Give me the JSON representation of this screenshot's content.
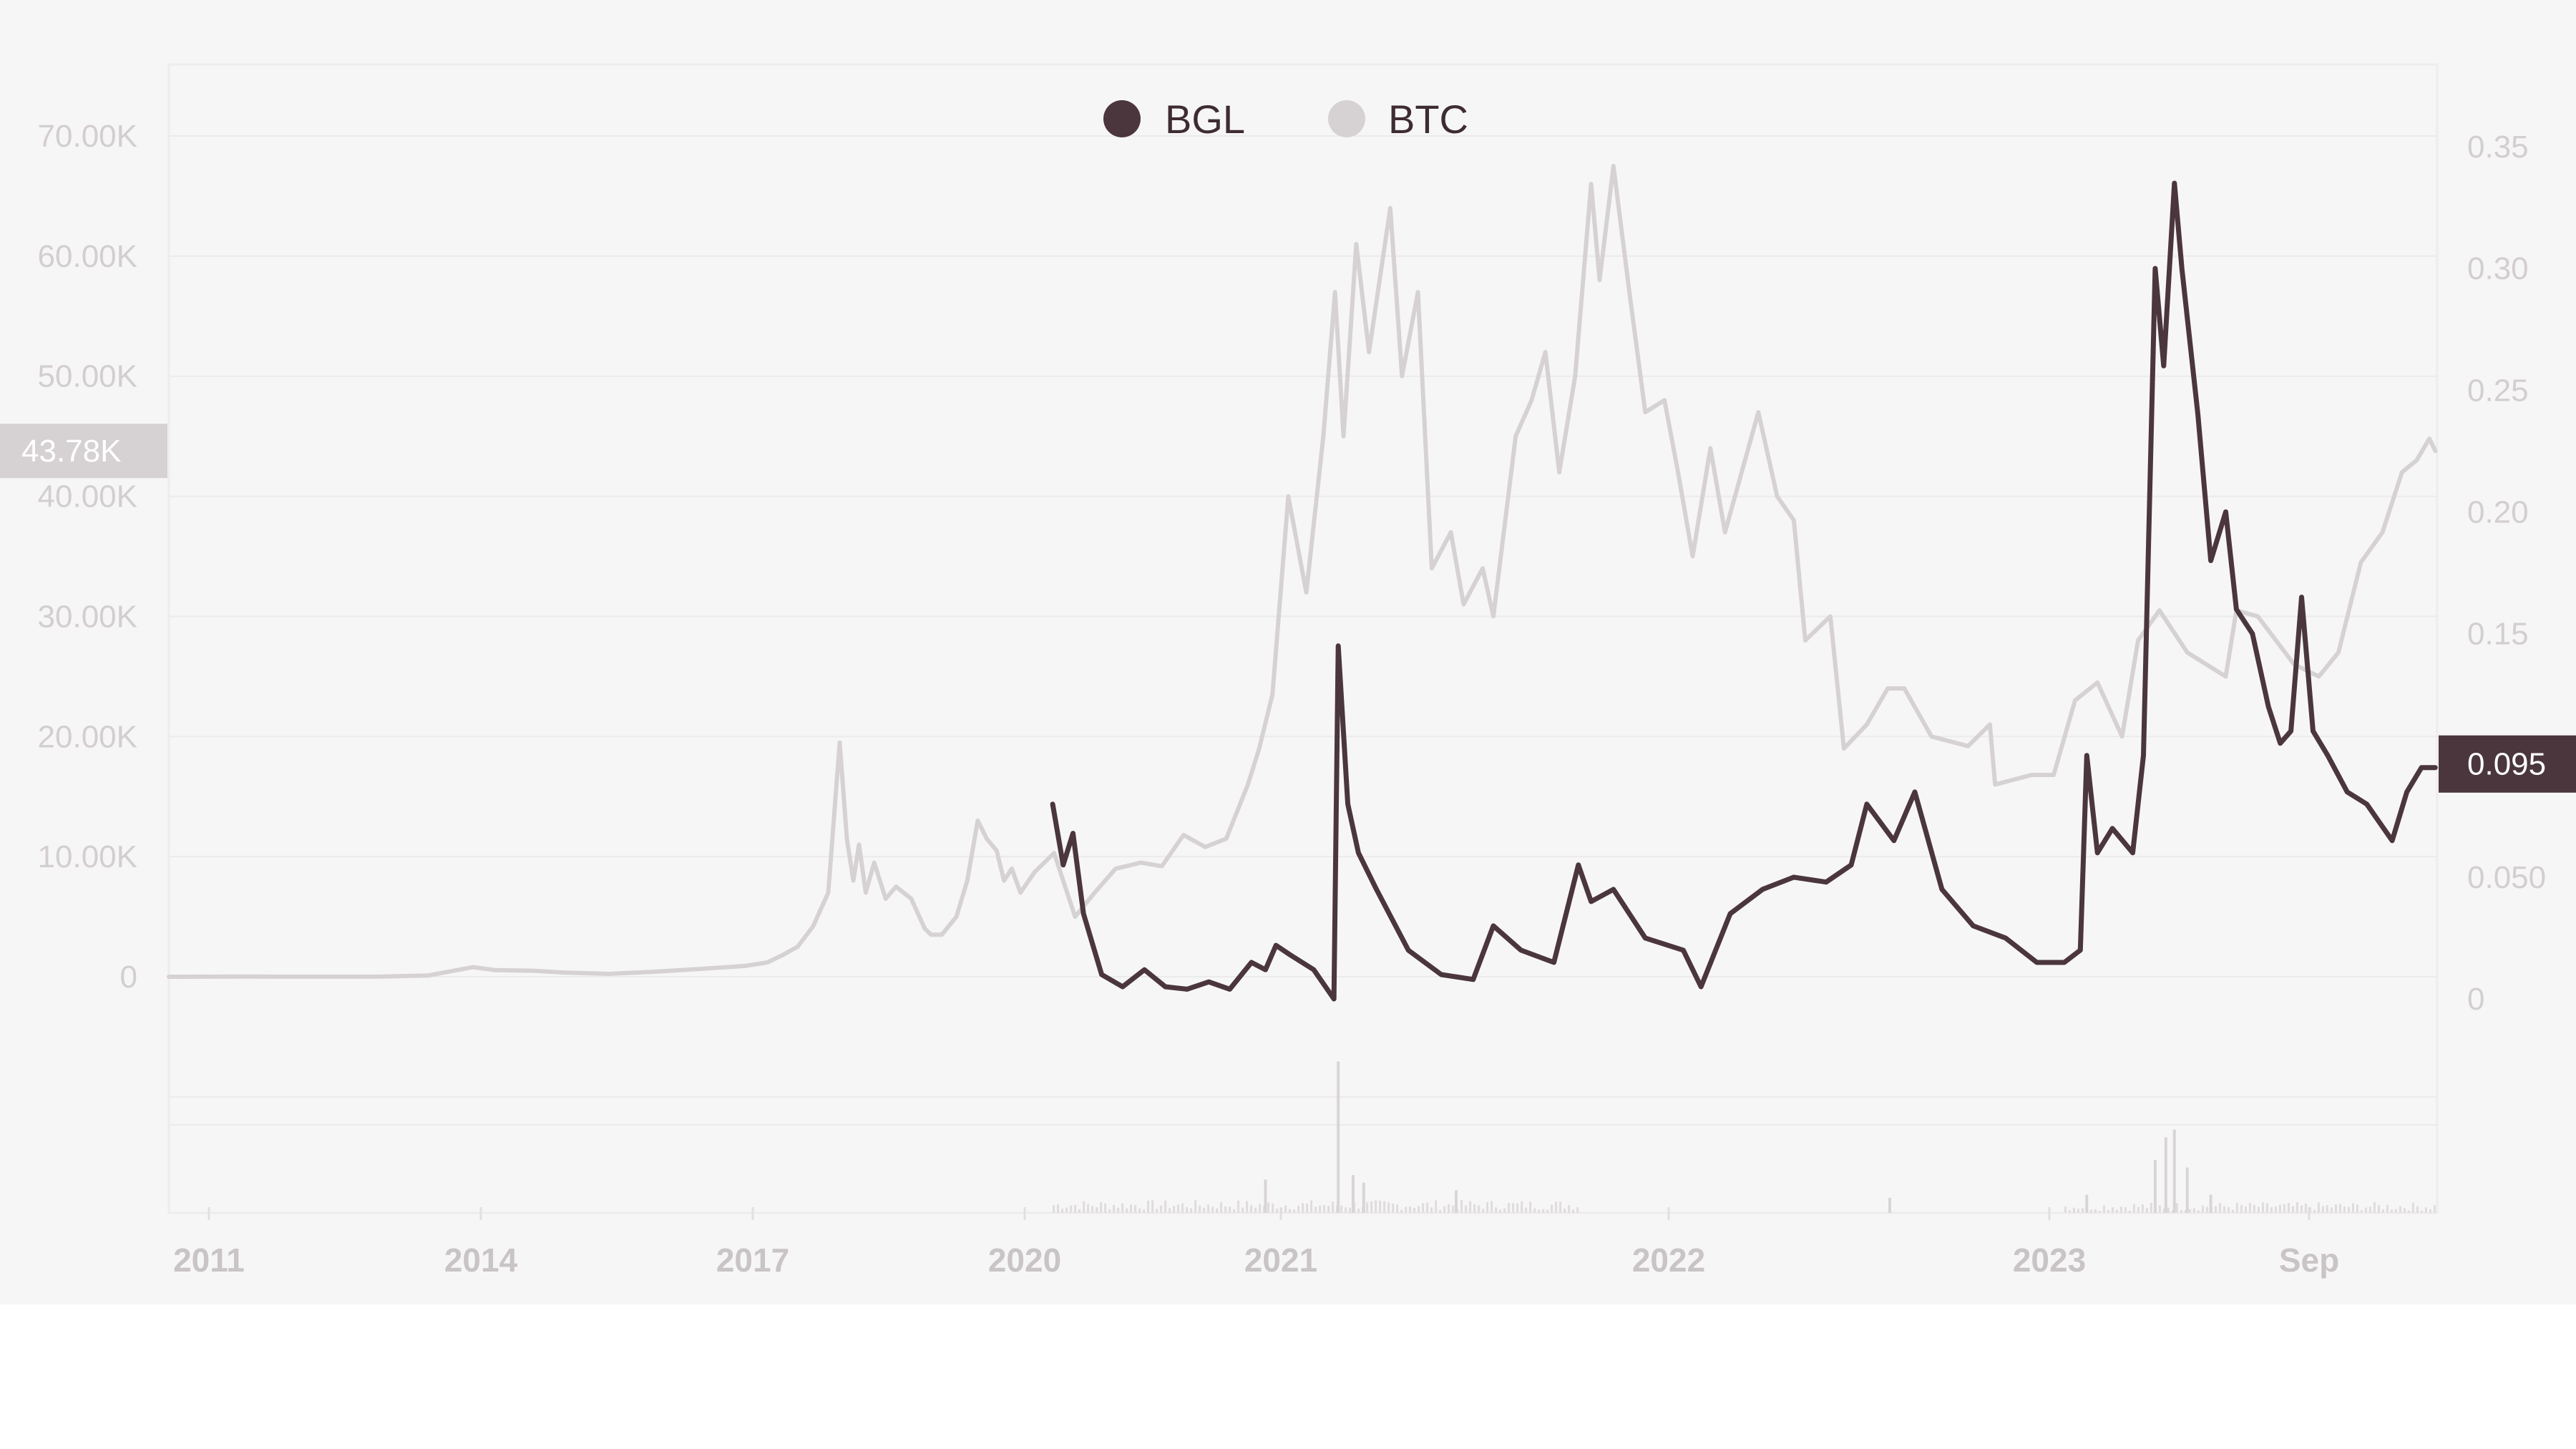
{
  "chart_data": {
    "type": "line",
    "legend": {
      "placement": "top-center",
      "items": [
        {
          "label": "BGL",
          "color": "#4a363c"
        },
        {
          "label": "BTC",
          "color": "#d6d2d3"
        }
      ]
    },
    "x_axis": {
      "ticks": [
        {
          "label": "2011",
          "date": "2011-01-01"
        },
        {
          "label": "2014",
          "date": "2014-01-01"
        },
        {
          "label": "2017",
          "date": "2017-01-01"
        },
        {
          "label": "2020",
          "date": "2020-01-01"
        },
        {
          "label": "2021",
          "date": "2021-01-01"
        },
        {
          "label": "2022",
          "date": "2022-01-01"
        },
        {
          "label": "2023",
          "date": "2023-01-01"
        },
        {
          "label": "Sep",
          "date": "2023-09-01"
        }
      ]
    },
    "y_left": {
      "series": "BTC",
      "range": [
        -10000,
        77000
      ],
      "ticks": [
        {
          "label": "0",
          "value": 0
        },
        {
          "label": "10.00K",
          "value": 10000
        },
        {
          "label": "20.00K",
          "value": 20000
        },
        {
          "label": "30.00K",
          "value": 30000
        },
        {
          "label": "40.00K",
          "value": 40000
        },
        {
          "label": "50.00K",
          "value": 50000
        },
        {
          "label": "60.00K",
          "value": 60000
        },
        {
          "label": "70.00K",
          "value": 70000
        }
      ],
      "current_badge": {
        "label": "43.78K",
        "value": 43780,
        "color": "#d6d2d3"
      }
    },
    "y_right": {
      "series": "BGL",
      "range": [
        -0.05,
        0.37
      ],
      "ticks": [
        {
          "label": "0",
          "value": 0
        },
        {
          "label": "0.050",
          "value": 0.05
        },
        {
          "label": "0.15",
          "value": 0.15
        },
        {
          "label": "0.20",
          "value": 0.2
        },
        {
          "label": "0.25",
          "value": 0.25
        },
        {
          "label": "0.30",
          "value": 0.3
        },
        {
          "label": "0.35",
          "value": 0.35
        }
      ],
      "current_badge": {
        "label": "0.095",
        "value": 0.095,
        "color": "#4a363c"
      }
    },
    "grid": true,
    "series": [
      {
        "name": "BTC",
        "axis": "left",
        "color": "#d6d2d3",
        "points": [
          [
            "2010-07-01",
            0
          ],
          [
            "2011-06-01",
            20
          ],
          [
            "2011-12-01",
            4
          ],
          [
            "2012-06-01",
            6
          ],
          [
            "2012-12-01",
            13
          ],
          [
            "2013-06-01",
            100
          ],
          [
            "2013-12-01",
            800
          ],
          [
            "2014-03-01",
            550
          ],
          [
            "2014-08-01",
            500
          ],
          [
            "2014-12-01",
            350
          ],
          [
            "2015-06-01",
            240
          ],
          [
            "2015-12-01",
            420
          ],
          [
            "2016-06-01",
            650
          ],
          [
            "2016-12-01",
            900
          ],
          [
            "2017-03-01",
            1200
          ],
          [
            "2017-05-01",
            1800
          ],
          [
            "2017-07-01",
            2500
          ],
          [
            "2017-09-01",
            4200
          ],
          [
            "2017-11-01",
            7000
          ],
          [
            "2017-12-17",
            19500
          ],
          [
            "2018-01-15",
            11500
          ],
          [
            "2018-02-10",
            8000
          ],
          [
            "2018-03-05",
            11000
          ],
          [
            "2018-04-01",
            7000
          ],
          [
            "2018-05-05",
            9500
          ],
          [
            "2018-06-20",
            6500
          ],
          [
            "2018-08-01",
            7500
          ],
          [
            "2018-10-01",
            6500
          ],
          [
            "2018-11-25",
            4000
          ],
          [
            "2018-12-20",
            3500
          ],
          [
            "2019-02-01",
            3500
          ],
          [
            "2019-04-01",
            5000
          ],
          [
            "2019-05-15",
            8000
          ],
          [
            "2019-06-26",
            13000
          ],
          [
            "2019-08-01",
            11500
          ],
          [
            "2019-09-10",
            10500
          ],
          [
            "2019-10-10",
            8000
          ],
          [
            "2019-11-10",
            9000
          ],
          [
            "2019-12-15",
            7000
          ],
          [
            "2020-01-15",
            8700
          ],
          [
            "2020-02-12",
            10300
          ],
          [
            "2020-03-13",
            5000
          ],
          [
            "2020-04-10",
            7000
          ],
          [
            "2020-05-10",
            9000
          ],
          [
            "2020-06-15",
            9500
          ],
          [
            "2020-07-15",
            9200
          ],
          [
            "2020-08-15",
            11800
          ],
          [
            "2020-09-15",
            10800
          ],
          [
            "2020-10-15",
            11500
          ],
          [
            "2020-11-15",
            16000
          ],
          [
            "2020-12-01",
            19000
          ],
          [
            "2020-12-20",
            23500
          ],
          [
            "2021-01-08",
            40000
          ],
          [
            "2021-01-25",
            32000
          ],
          [
            "2021-02-10",
            45000
          ],
          [
            "2021-02-21",
            57000
          ],
          [
            "2021-03-01",
            45000
          ],
          [
            "2021-03-13",
            61000
          ],
          [
            "2021-03-25",
            52000
          ],
          [
            "2021-04-14",
            64000
          ],
          [
            "2021-04-25",
            50000
          ],
          [
            "2021-05-10",
            57000
          ],
          [
            "2021-05-23",
            34000
          ],
          [
            "2021-06-10",
            37000
          ],
          [
            "2021-06-22",
            31000
          ],
          [
            "2021-07-10",
            34000
          ],
          [
            "2021-07-20",
            30000
          ],
          [
            "2021-08-10",
            45000
          ],
          [
            "2021-08-25",
            48000
          ],
          [
            "2021-09-07",
            52000
          ],
          [
            "2021-09-20",
            42000
          ],
          [
            "2021-10-05",
            50000
          ],
          [
            "2021-10-20",
            66000
          ],
          [
            "2021-10-28",
            58000
          ],
          [
            "2021-11-10",
            67500
          ],
          [
            "2021-11-25",
            57000
          ],
          [
            "2021-12-10",
            47000
          ],
          [
            "2021-12-28",
            48000
          ],
          [
            "2022-01-10",
            42000
          ],
          [
            "2022-01-24",
            35000
          ],
          [
            "2022-02-10",
            44000
          ],
          [
            "2022-02-24",
            37000
          ],
          [
            "2022-03-28",
            47000
          ],
          [
            "2022-04-15",
            40000
          ],
          [
            "2022-05-01",
            38000
          ],
          [
            "2022-05-12",
            28000
          ],
          [
            "2022-06-05",
            30000
          ],
          [
            "2022-06-18",
            19000
          ],
          [
            "2022-07-10",
            21000
          ],
          [
            "2022-07-30",
            24000
          ],
          [
            "2022-08-15",
            24000
          ],
          [
            "2022-09-10",
            20000
          ],
          [
            "2022-10-15",
            19200
          ],
          [
            "2022-11-05",
            21000
          ],
          [
            "2022-11-10",
            16000
          ],
          [
            "2022-12-15",
            16800
          ],
          [
            "2023-01-05",
            16800
          ],
          [
            "2023-01-25",
            23000
          ],
          [
            "2023-02-15",
            24500
          ],
          [
            "2023-03-10",
            20000
          ],
          [
            "2023-03-25",
            28000
          ],
          [
            "2023-04-14",
            30500
          ],
          [
            "2023-05-10",
            27000
          ],
          [
            "2023-06-15",
            25000
          ],
          [
            "2023-06-25",
            30500
          ],
          [
            "2023-07-15",
            30000
          ],
          [
            "2023-08-18",
            26000
          ],
          [
            "2023-09-11",
            25000
          ],
          [
            "2023-10-01",
            27000
          ],
          [
            "2023-10-24",
            34500
          ],
          [
            "2023-11-15",
            37000
          ],
          [
            "2023-12-05",
            42000
          ],
          [
            "2023-12-20",
            43000
          ],
          [
            "2024-01-02",
            44800
          ],
          [
            "2024-01-08",
            43780
          ]
        ]
      },
      {
        "name": "BGL",
        "axis": "right",
        "color": "#4a363c",
        "points": [
          [
            "2020-02-10",
            0.08
          ],
          [
            "2020-02-25",
            0.055
          ],
          [
            "2020-03-10",
            0.068
          ],
          [
            "2020-03-25",
            0.035
          ],
          [
            "2020-04-20",
            0.01
          ],
          [
            "2020-05-20",
            0.005
          ],
          [
            "2020-06-20",
            0.012
          ],
          [
            "2020-07-20",
            0.005
          ],
          [
            "2020-08-20",
            0.004
          ],
          [
            "2020-09-20",
            0.007
          ],
          [
            "2020-10-20",
            0.004
          ],
          [
            "2020-11-20",
            0.015
          ],
          [
            "2020-12-10",
            0.012
          ],
          [
            "2020-12-25",
            0.022
          ],
          [
            "2021-01-10",
            0.018
          ],
          [
            "2021-02-01",
            0.012
          ],
          [
            "2021-02-20",
            0.0
          ],
          [
            "2021-02-24",
            0.145
          ],
          [
            "2021-03-05",
            0.08
          ],
          [
            "2021-03-15",
            0.06
          ],
          [
            "2021-04-01",
            0.045
          ],
          [
            "2021-05-01",
            0.02
          ],
          [
            "2021-06-01",
            0.01
          ],
          [
            "2021-07-01",
            0.008
          ],
          [
            "2021-07-20",
            0.03
          ],
          [
            "2021-08-15",
            0.02
          ],
          [
            "2021-09-15",
            0.015
          ],
          [
            "2021-10-08",
            0.055
          ],
          [
            "2021-10-20",
            0.04
          ],
          [
            "2021-11-10",
            0.045
          ],
          [
            "2021-12-10",
            0.025
          ],
          [
            "2022-01-15",
            0.02
          ],
          [
            "2022-02-01",
            0.005
          ],
          [
            "2022-03-01",
            0.035
          ],
          [
            "2022-04-01",
            0.045
          ],
          [
            "2022-05-01",
            0.05
          ],
          [
            "2022-06-01",
            0.048
          ],
          [
            "2022-06-25",
            0.055
          ],
          [
            "2022-07-10",
            0.08
          ],
          [
            "2022-08-05",
            0.065
          ],
          [
            "2022-08-25",
            0.085
          ],
          [
            "2022-09-20",
            0.045
          ],
          [
            "2022-10-20",
            0.03
          ],
          [
            "2022-11-20",
            0.025
          ],
          [
            "2022-12-20",
            0.015
          ],
          [
            "2023-01-15",
            0.015
          ],
          [
            "2023-01-30",
            0.02
          ],
          [
            "2023-02-05",
            0.1
          ],
          [
            "2023-02-15",
            0.06
          ],
          [
            "2023-03-01",
            0.07
          ],
          [
            "2023-03-20",
            0.06
          ],
          [
            "2023-03-30",
            0.1
          ],
          [
            "2023-04-10",
            0.3
          ],
          [
            "2023-04-18",
            0.26
          ],
          [
            "2023-04-28",
            0.335
          ],
          [
            "2023-05-05",
            0.3
          ],
          [
            "2023-05-20",
            0.24
          ],
          [
            "2023-06-01",
            0.18
          ],
          [
            "2023-06-15",
            0.2
          ],
          [
            "2023-06-25",
            0.16
          ],
          [
            "2023-07-10",
            0.15
          ],
          [
            "2023-07-25",
            0.12
          ],
          [
            "2023-08-05",
            0.105
          ],
          [
            "2023-08-15",
            0.11
          ],
          [
            "2023-08-25",
            0.165
          ],
          [
            "2023-09-05",
            0.11
          ],
          [
            "2023-09-20",
            0.1
          ],
          [
            "2023-10-10",
            0.085
          ],
          [
            "2023-10-30",
            0.08
          ],
          [
            "2023-11-25",
            0.065
          ],
          [
            "2023-12-10",
            0.085
          ],
          [
            "2023-12-25",
            0.095
          ],
          [
            "2024-01-08",
            0.095
          ]
        ]
      }
    ],
    "volume_spikes": [
      {
        "date": "2020-12-10",
        "height": 0.22
      },
      {
        "date": "2021-02-24",
        "height": 1.0
      },
      {
        "date": "2021-03-10",
        "height": 0.25
      },
      {
        "date": "2021-03-20",
        "height": 0.2
      },
      {
        "date": "2021-06-15",
        "height": 0.15
      },
      {
        "date": "2022-08-01",
        "height": 0.1
      },
      {
        "date": "2023-02-05",
        "height": 0.12
      },
      {
        "date": "2023-04-10",
        "height": 0.35
      },
      {
        "date": "2023-04-20",
        "height": 0.5
      },
      {
        "date": "2023-04-28",
        "height": 0.55
      },
      {
        "date": "2023-05-10",
        "height": 0.3
      },
      {
        "date": "2023-06-01",
        "height": 0.12
      }
    ]
  }
}
